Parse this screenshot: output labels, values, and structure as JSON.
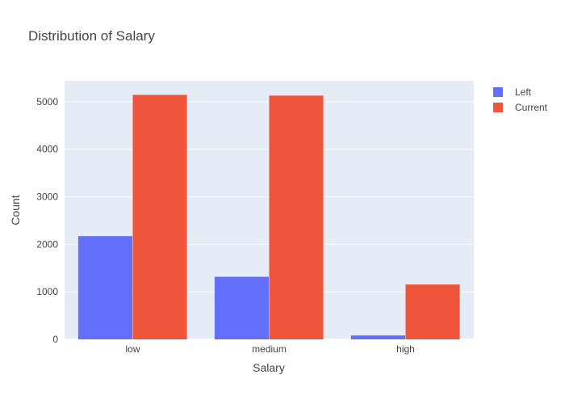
{
  "chart_data": {
    "type": "bar",
    "title": "Distribution of Salary",
    "xlabel": "Salary",
    "ylabel": "Count",
    "categories": [
      "low",
      "medium",
      "high"
    ],
    "series": [
      {
        "name": "Left",
        "color": "#636efa",
        "values": [
          2172,
          1317,
          82
        ]
      },
      {
        "name": "Current",
        "color": "#ef553b",
        "values": [
          5144,
          5129,
          1155
        ]
      }
    ],
    "ylim": [
      0,
      5440
    ],
    "yticks": [
      0,
      1000,
      2000,
      3000,
      4000,
      5000
    ],
    "grid": true,
    "legend_position": "top-right",
    "plot_background": "#e5ecf6"
  }
}
